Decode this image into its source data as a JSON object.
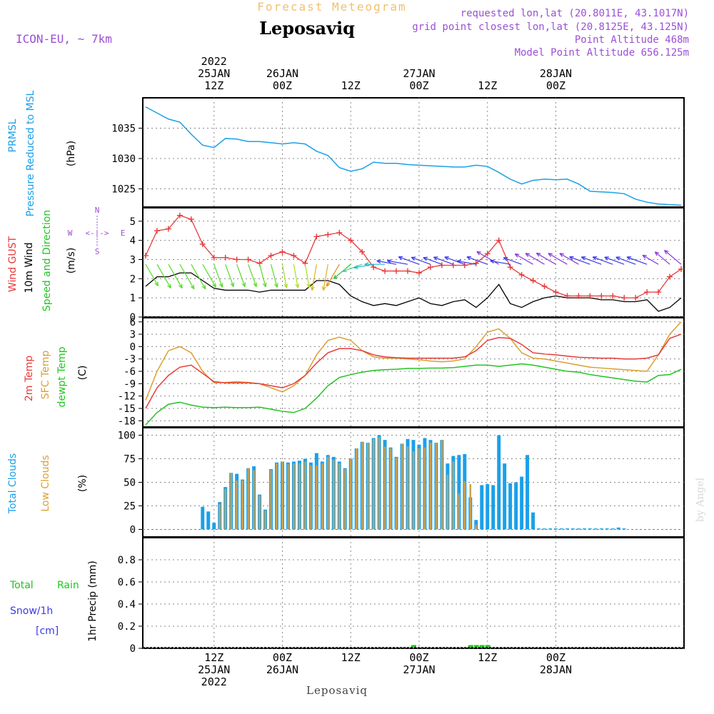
{
  "header": {
    "subtitle": "Forecast Meteogram",
    "location": "Leposaviq",
    "model": "ICON-EU, ~ 7km",
    "requested": "requested lon,lat (20.8011E, 43.1017N)",
    "grid": "grid point closest lon,lat (20.8125E, 43.125N)",
    "point_alt": "Point Altitude 468m",
    "model_alt": "Model Point Altitude 656.125m",
    "footer_location": "Leposaviq",
    "credit": "by Angel"
  },
  "time_axis": {
    "top": [
      {
        "hour": 12,
        "l1": "12Z",
        "l2": "25JAN",
        "l3": "2022"
      },
      {
        "hour": 24,
        "l1": "00Z",
        "l2": "26JAN",
        "l3": ""
      },
      {
        "hour": 36,
        "l1": "12Z",
        "l2": "",
        "l3": ""
      },
      {
        "hour": 48,
        "l1": "00Z",
        "l2": "27JAN",
        "l3": ""
      },
      {
        "hour": 60,
        "l1": "12Z",
        "l2": "",
        "l3": ""
      },
      {
        "hour": 72,
        "l1": "00Z",
        "l2": "28JAN",
        "l3": ""
      }
    ],
    "bottom": [
      {
        "hour": 12,
        "l1": "12Z",
        "l2": "25JAN",
        "l3": "2022"
      },
      {
        "hour": 24,
        "l1": "00Z",
        "l2": "26JAN",
        "l3": ""
      },
      {
        "hour": 36,
        "l1": "12Z",
        "l2": "",
        "l3": ""
      },
      {
        "hour": 48,
        "l1": "00Z",
        "l2": "27JAN",
        "l3": ""
      },
      {
        "hour": 60,
        "l1": "12Z",
        "l2": "",
        "l3": ""
      },
      {
        "hour": 72,
        "l1": "00Z",
        "l2": "28JAN",
        "l3": ""
      }
    ]
  },
  "panels": {
    "pressure": {
      "labels": [
        "PRMSL",
        "Pressure Reduced to MSL",
        "(hPa)"
      ]
    },
    "wind": {
      "labels": [
        "Wind GUST",
        "10m Wind",
        "Speed and Direction",
        "(m/s)"
      ],
      "compass": {
        "n": "N",
        "s": "S",
        "w": "W",
        "e": "E",
        "arrows": "<-|->"
      }
    },
    "temp": {
      "labels": [
        "2m Temp",
        "SFC Temp",
        "dewpt Temp",
        "(C)"
      ]
    },
    "clouds": {
      "labels": [
        "Total Clouds",
        "Low Clouds",
        "(%)"
      ]
    },
    "precip": {
      "labels": [
        "Total",
        "Rain",
        "Snow/1h",
        "[cm]",
        "1hr Precip (mm)"
      ]
    }
  },
  "colors": {
    "pressure": "#1aa0e8",
    "gust": "#e83a3a",
    "wind": "#000000",
    "temp": "#e83a3a",
    "sfc": "#dba030",
    "dew": "#22c422",
    "total_cloud": "#1aa0e8",
    "low_cloud": "#c8a050",
    "rain": "#22c422",
    "snow": "#3a3ae8"
  },
  "chart_data": [
    {
      "type": "line",
      "title": "PRMSL Pressure Reduced to MSL",
      "ylabel": "(hPa)",
      "yticks": [
        1025,
        1030,
        1035
      ],
      "ylim": [
        1022,
        1040
      ],
      "x": [
        0,
        2,
        4,
        6,
        8,
        10,
        12,
        14,
        16,
        18,
        20,
        22,
        24,
        26,
        28,
        30,
        32,
        34,
        36,
        38,
        40,
        42,
        44,
        46,
        48,
        50,
        52,
        54,
        56,
        58,
        60,
        62,
        64,
        66,
        68,
        70,
        72,
        74,
        76,
        78,
        80,
        82,
        84,
        86,
        88,
        90,
        92,
        94
      ],
      "values": [
        1038.5,
        1037.5,
        1036.5,
        1036,
        1034,
        1032.2,
        1031.8,
        1033.3,
        1033.2,
        1032.8,
        1032.8,
        1032.6,
        1032.4,
        1032.6,
        1032.4,
        1031.2,
        1030.5,
        1028.5,
        1027.9,
        1028.3,
        1029.4,
        1029.2,
        1029.2,
        1029,
        1028.9,
        1028.8,
        1028.7,
        1028.6,
        1028.6,
        1028.9,
        1028.7,
        1027.7,
        1026.6,
        1025.8,
        1026.4,
        1026.6,
        1026.5,
        1026.6,
        1025.8,
        1024.6,
        1024.5,
        1024.4,
        1024.2,
        1023.3,
        1022.8,
        1022.5,
        1022.4,
        1022.3
      ]
    },
    {
      "type": "line",
      "title": "Wind GUST / 10m Wind Speed and Direction",
      "ylabel": "(m/s)",
      "yticks": [
        0,
        1,
        2,
        3,
        4,
        5
      ],
      "ylim": [
        0,
        5.7
      ],
      "x": [
        0,
        2,
        4,
        6,
        8,
        10,
        12,
        14,
        16,
        18,
        20,
        22,
        24,
        26,
        28,
        30,
        32,
        34,
        36,
        38,
        40,
        42,
        44,
        46,
        48,
        50,
        52,
        54,
        56,
        58,
        60,
        62,
        64,
        66,
        68,
        70,
        72,
        74,
        76,
        78,
        80,
        82,
        84,
        86,
        88,
        90,
        92,
        94
      ],
      "series": [
        {
          "name": "Wind GUST",
          "values": [
            3.2,
            4.5,
            4.6,
            5.3,
            5.1,
            3.8,
            3.1,
            3.1,
            3.0,
            3.0,
            2.8,
            3.2,
            3.4,
            3.2,
            2.8,
            4.2,
            4.3,
            4.4,
            4.0,
            3.4,
            2.6,
            2.4,
            2.4,
            2.4,
            2.3,
            2.6,
            2.7,
            2.7,
            2.7,
            2.8,
            3.3,
            4.0,
            2.6,
            2.2,
            1.9,
            1.6,
            1.3,
            1.1,
            1.1,
            1.1,
            1.1,
            1.1,
            1.0,
            1.0,
            1.3,
            1.3,
            2.1,
            2.5
          ]
        },
        {
          "name": "10m Wind",
          "values": [
            1.6,
            2.1,
            2.1,
            2.3,
            2.3,
            1.9,
            1.5,
            1.4,
            1.4,
            1.4,
            1.3,
            1.4,
            1.4,
            1.4,
            1.4,
            1.9,
            1.9,
            1.7,
            1.1,
            0.8,
            0.6,
            0.7,
            0.6,
            0.8,
            1.0,
            0.7,
            0.6,
            0.8,
            0.9,
            0.5,
            1.0,
            1.7,
            0.7,
            0.5,
            0.8,
            1.0,
            1.1,
            1.0,
            1.0,
            1.0,
            0.9,
            0.9,
            0.8,
            0.8,
            0.9,
            0.3,
            0.5,
            1.0
          ]
        }
      ],
      "directions_deg": [
        150,
        150,
        150,
        150,
        150,
        150,
        160,
        160,
        160,
        160,
        165,
        165,
        170,
        170,
        170,
        190,
        190,
        210,
        230,
        250,
        260,
        270,
        280,
        280,
        290,
        290,
        290,
        290,
        290,
        280,
        290,
        300,
        280,
        290,
        300,
        300,
        300,
        300,
        300,
        290,
        290,
        290,
        290,
        290,
        290,
        300,
        310,
        310
      ]
    },
    {
      "type": "line",
      "title": "2m Temp / SFC Temp / dewpt Temp",
      "ylabel": "(C)",
      "yticks": [
        -18,
        -15,
        -12,
        -9,
        -6,
        -3,
        0,
        3,
        6
      ],
      "ylim": [
        -19.5,
        7
      ],
      "x": [
        0,
        2,
        4,
        6,
        8,
        10,
        12,
        14,
        16,
        18,
        20,
        22,
        24,
        26,
        28,
        30,
        32,
        34,
        36,
        38,
        40,
        42,
        44,
        46,
        48,
        50,
        52,
        54,
        56,
        58,
        60,
        62,
        64,
        66,
        68,
        70,
        72,
        74,
        76,
        78,
        80,
        82,
        84,
        86,
        88,
        90,
        92,
        94
      ],
      "series": [
        {
          "name": "2m Temp",
          "values": [
            -15,
            -10,
            -7,
            -5,
            -4.5,
            -6.5,
            -8.5,
            -8.8,
            -8.8,
            -8.8,
            -9,
            -9.5,
            -10,
            -9,
            -7,
            -4,
            -1.5,
            -0.5,
            -0.5,
            -1,
            -2,
            -2.5,
            -2.7,
            -2.8,
            -2.8,
            -2.8,
            -2.8,
            -2.8,
            -2.5,
            -1,
            1.5,
            2.2,
            2,
            0.5,
            -1.5,
            -1.8,
            -2,
            -2.3,
            -2.6,
            -2.7,
            -2.8,
            -2.8,
            -3,
            -3,
            -2.8,
            -2,
            2,
            3
          ]
        },
        {
          "name": "SFC Temp",
          "values": [
            -13,
            -6,
            -1,
            0,
            -1.5,
            -6,
            -8.8,
            -8.7,
            -8.5,
            -8.7,
            -9,
            -10,
            -11,
            -9.5,
            -7,
            -2,
            1.5,
            2.3,
            1.5,
            -1,
            -2.5,
            -2.8,
            -2.8,
            -3,
            -3.2,
            -3.5,
            -3.7,
            -3.5,
            -3,
            0,
            3.5,
            4.3,
            2,
            -1.5,
            -2.8,
            -3,
            -3.5,
            -4,
            -4.5,
            -5,
            -5.2,
            -5.4,
            -5.6,
            -5.8,
            -6,
            -2,
            3,
            6
          ]
        },
        {
          "name": "dewpt Temp",
          "values": [
            -19,
            -16,
            -14,
            -13.5,
            -14.2,
            -14.7,
            -14.8,
            -14.7,
            -14.8,
            -14.8,
            -14.7,
            -15.2,
            -15.7,
            -16,
            -15,
            -12.5,
            -9.5,
            -7.5,
            -6.8,
            -6.2,
            -5.8,
            -5.6,
            -5.5,
            -5.3,
            -5.3,
            -5.2,
            -5.2,
            -5.1,
            -4.8,
            -4.5,
            -4.5,
            -4.8,
            -4.5,
            -4.2,
            -4.5,
            -5,
            -5.5,
            -6,
            -6.2,
            -6.8,
            -7.2,
            -7.6,
            -8,
            -8.4,
            -8.6,
            -7,
            -6.8,
            -5.5
          ]
        }
      ]
    },
    {
      "type": "bar",
      "title": "Total Clouds / Low Clouds",
      "ylabel": "(%)",
      "yticks": [
        0,
        25,
        50,
        75,
        100
      ],
      "ylim": [
        -8,
        108
      ],
      "x": [
        0,
        1,
        2,
        3,
        4,
        5,
        6,
        7,
        8,
        9,
        10,
        11,
        12,
        13,
        14,
        15,
        16,
        17,
        18,
        19,
        20,
        21,
        22,
        23,
        24,
        25,
        26,
        27,
        28,
        29,
        30,
        31,
        32,
        33,
        34,
        35,
        36,
        37,
        38,
        39,
        40,
        41,
        42,
        43,
        44,
        45,
        46,
        47,
        48,
        49,
        50,
        51,
        52,
        53,
        54,
        55,
        56,
        57,
        58,
        59,
        60,
        61,
        62,
        63,
        64,
        65,
        66,
        67,
        68,
        69,
        70,
        71,
        72,
        73,
        74,
        75,
        76,
        77,
        78,
        79,
        80,
        81,
        82,
        83,
        84,
        85,
        86,
        87,
        88,
        89,
        90,
        91,
        92,
        93,
        94,
        95
      ],
      "series": [
        {
          "name": "Total Clouds",
          "values": [
            0,
            0,
            0,
            0,
            0,
            0,
            0,
            0,
            0,
            0,
            24,
            19,
            7,
            29,
            45,
            60,
            59,
            53,
            65,
            67,
            37,
            21,
            64,
            71,
            72,
            71,
            72,
            73,
            75,
            71,
            81,
            72,
            79,
            77,
            72,
            65,
            75,
            86,
            93,
            92,
            97,
            100,
            95,
            87,
            77,
            91,
            96,
            95,
            90,
            97,
            95,
            92,
            95,
            70,
            78,
            79,
            80,
            34,
            10,
            47,
            48,
            47,
            100,
            70,
            49,
            50,
            56,
            79,
            18,
            1,
            1,
            1,
            1,
            1,
            1,
            1,
            1,
            1,
            1,
            1,
            1,
            1,
            1,
            2,
            1,
            0,
            0,
            0,
            0,
            0,
            0,
            0,
            0,
            0,
            0,
            0
          ]
        },
        {
          "name": "Low Clouds",
          "values": [
            0,
            0,
            0,
            0,
            0,
            0,
            0,
            0,
            0,
            0,
            0,
            0,
            0,
            27,
            43,
            60,
            52,
            52,
            65,
            63,
            36,
            20,
            63,
            70,
            72,
            69,
            70,
            70,
            72,
            68,
            68,
            70,
            77,
            74,
            70,
            64,
            75,
            86,
            93,
            92,
            96,
            98,
            88,
            86,
            76,
            91,
            88,
            83,
            86,
            87,
            92,
            92,
            95,
            58,
            72,
            38,
            51,
            48,
            5,
            0,
            0,
            0,
            0,
            0,
            0,
            0,
            0,
            0,
            0,
            0,
            0,
            0,
            0,
            0,
            0,
            0,
            0,
            0,
            0,
            0,
            0,
            0,
            0,
            0,
            0,
            0,
            0,
            0,
            0,
            0,
            0,
            0,
            0,
            0,
            0,
            0
          ]
        }
      ]
    },
    {
      "type": "bar",
      "title": "1hr Precip (mm)",
      "ylabel": "1hr Precip (mm)",
      "yticks": [
        0,
        0.2,
        0.4,
        0.6,
        0.8
      ],
      "ylim": [
        0,
        1.0
      ],
      "x": [
        47,
        57,
        58,
        59,
        60
      ],
      "series": [
        {
          "name": "Total Rain",
          "values": [
            0.01,
            0.01,
            0.01,
            0.01,
            0.01
          ]
        },
        {
          "name": "Snow/1h",
          "values": [
            0,
            0,
            0,
            0,
            0
          ]
        }
      ]
    }
  ]
}
